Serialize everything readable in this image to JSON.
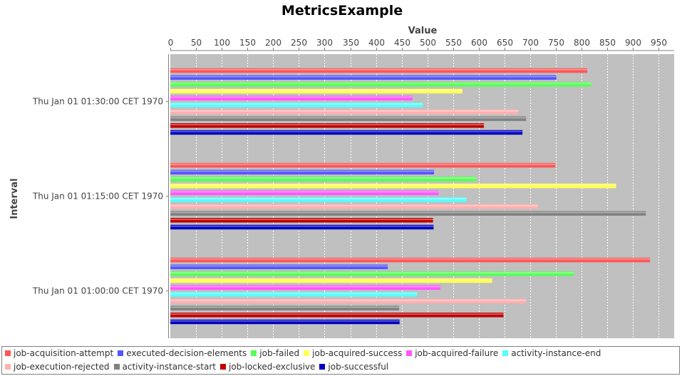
{
  "chart_data": {
    "type": "bar",
    "orientation": "horizontal",
    "title": "MetricsExample",
    "xlabel": "Interval",
    "ylabel": "Value",
    "categories": [
      "Thu Jan 01 01:30:00 CET 1970",
      "Thu Jan 01 01:15:00 CET 1970",
      "Thu Jan 01 01:00:00 CET 1970"
    ],
    "value_axis": {
      "range": [
        0,
        980
      ],
      "ticks": [
        "0",
        "50",
        "100",
        "150",
        "200",
        "250",
        "300",
        "350",
        "400",
        "450",
        "500",
        "550",
        "600",
        "650",
        "700",
        "750",
        "800",
        "850",
        "900",
        "950"
      ],
      "position": "top"
    },
    "grid": true,
    "legend_position": "bottom",
    "series": [
      {
        "name": "job-acquisition-attempt",
        "color": "#ff5555",
        "values": [
          811,
          749,
          933
        ]
      },
      {
        "name": "executed-decision-elements",
        "color": "#5555ff",
        "values": [
          751,
          513,
          423
        ]
      },
      {
        "name": "job-failed",
        "color": "#55ff55",
        "values": [
          818,
          595,
          785
        ]
      },
      {
        "name": "job-acquired-success",
        "color": "#ffff55",
        "values": [
          568,
          867,
          626
        ]
      },
      {
        "name": "job-acquired-failure",
        "color": "#ff55ff",
        "values": [
          471,
          522,
          525
        ]
      },
      {
        "name": "activity-instance-end",
        "color": "#55ffff",
        "values": [
          491,
          576,
          480
        ]
      },
      {
        "name": "job-execution-rejected",
        "color": "#ffafaf",
        "values": [
          677,
          715,
          692
        ]
      },
      {
        "name": "activity-instance-start",
        "color": "#808080",
        "values": [
          692,
          925,
          445
        ]
      },
      {
        "name": "job-locked-exclusive",
        "color": "#c00000",
        "values": [
          610,
          511,
          648
        ]
      },
      {
        "name": "job-successful",
        "color": "#0000c0",
        "values": [
          685,
          512,
          446
        ]
      }
    ]
  }
}
